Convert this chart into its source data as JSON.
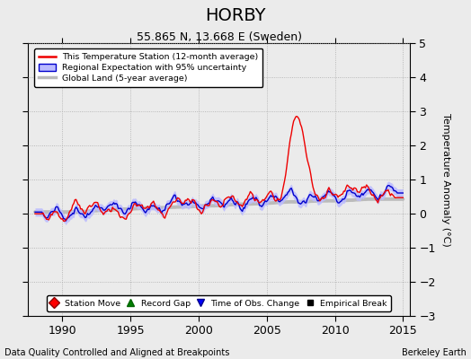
{
  "title": "HORBY",
  "subtitle": "55.865 N, 13.668 E (Sweden)",
  "xlabel_left": "Data Quality Controlled and Aligned at Breakpoints",
  "xlabel_right": "Berkeley Earth",
  "ylabel": "Temperature Anomaly (°C)",
  "legend_line1": "This Temperature Station (12-month average)",
  "legend_line2": "Regional Expectation with 95% uncertainty",
  "legend_line3": "Global Land (5-year average)",
  "legend_marker1": "Station Move",
  "legend_marker2": "Record Gap",
  "legend_marker3": "Time of Obs. Change",
  "legend_marker4": "Empirical Break",
  "xlim": [
    1987.5,
    2015.5
  ],
  "ylim": [
    -3.0,
    5.0
  ],
  "yticks": [
    -3,
    -2,
    -1,
    0,
    1,
    2,
    3,
    4,
    5
  ],
  "xticks": [
    1990,
    1995,
    2000,
    2005,
    2010,
    2015
  ],
  "color_station": "#EE0000",
  "color_regional": "#0000CC",
  "color_regional_fill": "#BBBBFF",
  "color_global": "#BBBBBB",
  "background": "#EBEBEB",
  "seed": 17
}
